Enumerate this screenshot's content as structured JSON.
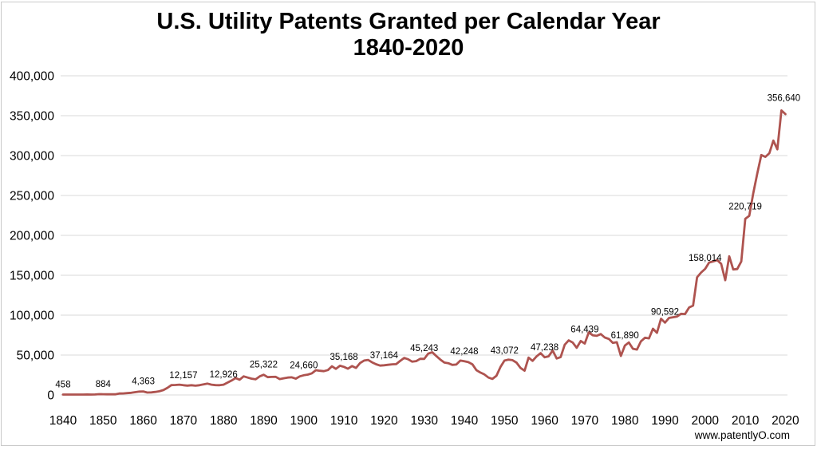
{
  "chart_data": {
    "type": "line",
    "title": "U.S. Utility Patents Granted per Calendar Year",
    "subtitle": "1840-2020",
    "xlabel": "",
    "ylabel": "",
    "watermark": "www.patentlyO.com",
    "legend_position": "none",
    "grid": "horizontal",
    "line_color": "#ae534f",
    "gridline_color": "#d9d9d9",
    "x_start": 1840,
    "x_end": 2020,
    "ylim": [
      0,
      400000
    ],
    "y_ticks": [
      {
        "value": 0,
        "label": "0"
      },
      {
        "value": 50000,
        "label": "50,000"
      },
      {
        "value": 100000,
        "label": "100,000"
      },
      {
        "value": 150000,
        "label": "150,000"
      },
      {
        "value": 200000,
        "label": "200,000"
      },
      {
        "value": 250000,
        "label": "250,000"
      },
      {
        "value": 300000,
        "label": "300,000"
      },
      {
        "value": 350000,
        "label": "350,000"
      },
      {
        "value": 400000,
        "label": "400,000"
      }
    ],
    "x_ticks": [
      "1840",
      "1850",
      "1860",
      "1870",
      "1880",
      "1890",
      "1900",
      "1910",
      "1920",
      "1930",
      "1940",
      "1950",
      "1960",
      "1970",
      "1980",
      "1990",
      "2000",
      "2010",
      "2020"
    ],
    "values": [
      458,
      490,
      488,
      493,
      478,
      473,
      566,
      495,
      583,
      984,
      884,
      752,
      885,
      844,
      1755,
      1881,
      2302,
      2674,
      3455,
      4160,
      4363,
      3020,
      3214,
      3773,
      4630,
      6088,
      8863,
      12277,
      12526,
      12931,
      12157,
      11659,
      12180,
      11616,
      12230,
      13291,
      14169,
      12920,
      12345,
      12165,
      12926,
      15500,
      18091,
      21162,
      19118,
      23285,
      21767,
      20403,
      19551,
      23324,
      25322,
      22312,
      22647,
      22750,
      19855,
      20856,
      21822,
      22067,
      20377,
      23278,
      24660,
      25546,
      27119,
      31029,
      30258,
      29775,
      31170,
      35859,
      32735,
      36561,
      35168,
      32856,
      36198,
      33917,
      39892,
      43118,
      43892,
      40935,
      38452,
      36797,
      37164,
      37798,
      38369,
      38616,
      42584,
      46432,
      44733,
      41717,
      42357,
      45267,
      45243,
      51756,
      53458,
      48774,
      44420,
      40618,
      39782,
      37683,
      38061,
      43073,
      42248,
      41109,
      38449,
      31054,
      28053,
      25695,
      21803,
      20139,
      23963,
      35131,
      43072,
      44326,
      43616,
      40468,
      33809,
      30432,
      46817,
      42744,
      48330,
      52408,
      47238,
      48368,
      55691,
      45679,
      47375,
      62857,
      68405,
      65652,
      59104,
      67559,
      64439,
      78317,
      74810,
      74143,
      76278,
      71994,
      70226,
      65269,
      66102,
      48854,
      61890,
      65771,
      57888,
      56860,
      67200,
      71661,
      70860,
      82952,
      77924,
      95537,
      90592,
      96511,
      97444,
      98342,
      101676,
      101419,
      109645,
      111983,
      147517,
      153485,
      158014,
      166035,
      167331,
      169028,
      164290,
      143806,
      173772,
      157282,
      157772,
      167349,
      220719,
      224505,
      253155,
      277835,
      300678,
      298407,
      303049,
      318829,
      307759,
      356640,
      352013
    ],
    "point_labels": [
      {
        "year": 1840,
        "text": "458"
      },
      {
        "year": 1850,
        "text": "884"
      },
      {
        "year": 1860,
        "text": "4,363"
      },
      {
        "year": 1870,
        "text": "12,157"
      },
      {
        "year": 1880,
        "text": "12,926"
      },
      {
        "year": 1890,
        "text": "25,322"
      },
      {
        "year": 1900,
        "text": "24,660"
      },
      {
        "year": 1910,
        "text": "35,168"
      },
      {
        "year": 1920,
        "text": "37,164"
      },
      {
        "year": 1930,
        "text": "45,243",
        "off": 10
      },
      {
        "year": 1940,
        "text": "42,248"
      },
      {
        "year": 1950,
        "text": "43,072"
      },
      {
        "year": 1960,
        "text": "47,238"
      },
      {
        "year": 1970,
        "text": "64,439",
        "off": 14
      },
      {
        "year": 1980,
        "text": "61,890"
      },
      {
        "year": 1990,
        "text": "90,592",
        "off": 10
      },
      {
        "year": 2000,
        "text": "158,014",
        "off": 10
      },
      {
        "year": 2010,
        "text": "220,719",
        "off": 12
      },
      {
        "year": 2019,
        "text": "356,640",
        "off": 12,
        "dx": 3
      }
    ]
  }
}
